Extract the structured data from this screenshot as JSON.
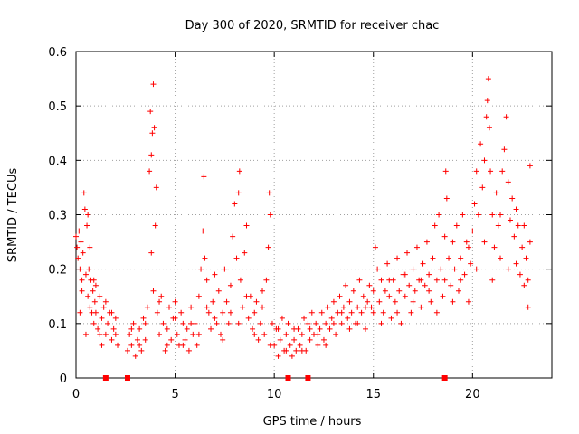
{
  "chart_data": {
    "type": "scatter",
    "title": "Day 300 of 2020, SRMTID for receiver chac",
    "xlabel": "GPS time / hours",
    "ylabel": "SRMTID / TECUs",
    "xlim": [
      0,
      24
    ],
    "ylim": [
      0,
      0.6
    ],
    "xticks": [
      0,
      5,
      10,
      15,
      20
    ],
    "yticks": [
      0,
      0.1,
      0.2,
      0.3,
      0.4,
      0.5,
      0.6
    ],
    "xtick_labels": [
      "0",
      "5",
      "10",
      "15",
      "20"
    ],
    "ytick_labels": [
      "0",
      "0.1",
      "0.2",
      "0.3",
      "0.4",
      "0.5",
      "0.6"
    ],
    "grid": true,
    "marker": "+",
    "color": "#ff0000",
    "series": [
      {
        "name": "SRMTID",
        "points": [
          [
            0.0,
            0.26
          ],
          [
            0.05,
            0.24
          ],
          [
            0.1,
            0.22
          ],
          [
            0.15,
            0.27
          ],
          [
            0.2,
            0.2
          ],
          [
            0.25,
            0.25
          ],
          [
            0.3,
            0.18
          ],
          [
            0.35,
            0.23
          ],
          [
            0.4,
            0.34
          ],
          [
            0.45,
            0.31
          ],
          [
            0.5,
            0.19
          ],
          [
            0.55,
            0.28
          ],
          [
            0.6,
            0.15
          ],
          [
            0.65,
            0.2
          ],
          [
            0.7,
            0.13
          ],
          [
            0.75,
            0.18
          ],
          [
            0.8,
            0.12
          ],
          [
            0.85,
            0.16
          ],
          [
            0.9,
            0.1
          ],
          [
            0.95,
            0.14
          ],
          [
            1.0,
            0.12
          ],
          [
            1.1,
            0.09
          ],
          [
            1.2,
            0.15
          ],
          [
            1.3,
            0.11
          ],
          [
            1.4,
            0.13
          ],
          [
            1.5,
            0.08
          ],
          [
            1.6,
            0.1
          ],
          [
            1.7,
            0.12
          ],
          [
            1.8,
            0.07
          ],
          [
            1.9,
            0.09
          ],
          [
            2.0,
            0.11
          ],
          [
            2.1,
            0.06
          ],
          [
            0.2,
            0.12
          ],
          [
            0.5,
            0.08
          ],
          [
            0.7,
            0.24
          ],
          [
            1.0,
            0.17
          ],
          [
            1.3,
            0.06
          ],
          [
            2.6,
            0.05
          ],
          [
            2.7,
            0.08
          ],
          [
            2.8,
            0.06
          ],
          [
            2.9,
            0.1
          ],
          [
            3.0,
            0.04
          ],
          [
            3.1,
            0.07
          ],
          [
            3.2,
            0.09
          ],
          [
            3.3,
            0.05
          ],
          [
            3.4,
            0.11
          ],
          [
            3.5,
            0.07
          ],
          [
            3.6,
            0.13
          ],
          [
            3.7,
            0.38
          ],
          [
            3.75,
            0.49
          ],
          [
            3.8,
            0.41
          ],
          [
            3.85,
            0.45
          ],
          [
            3.9,
            0.54
          ],
          [
            3.95,
            0.46
          ],
          [
            4.0,
            0.28
          ],
          [
            4.05,
            0.35
          ],
          [
            3.8,
            0.23
          ],
          [
            3.9,
            0.16
          ],
          [
            4.1,
            0.12
          ],
          [
            4.2,
            0.08
          ],
          [
            4.3,
            0.15
          ],
          [
            4.4,
            0.1
          ],
          [
            4.5,
            0.05
          ],
          [
            4.6,
            0.09
          ],
          [
            4.7,
            0.13
          ],
          [
            4.8,
            0.07
          ],
          [
            4.9,
            0.11
          ],
          [
            5.0,
            0.14
          ],
          [
            5.1,
            0.08
          ],
          [
            5.2,
            0.06
          ],
          [
            5.3,
            0.12
          ],
          [
            5.4,
            0.1
          ],
          [
            5.5,
            0.07
          ],
          [
            5.6,
            0.09
          ],
          [
            5.7,
            0.05
          ],
          [
            5.8,
            0.13
          ],
          [
            5.9,
            0.08
          ],
          [
            6.0,
            0.1
          ],
          [
            6.1,
            0.06
          ],
          [
            6.2,
            0.15
          ],
          [
            6.3,
            0.2
          ],
          [
            6.4,
            0.27
          ],
          [
            6.45,
            0.37
          ],
          [
            6.5,
            0.22
          ],
          [
            6.6,
            0.18
          ],
          [
            6.7,
            0.12
          ],
          [
            6.8,
            0.09
          ],
          [
            6.9,
            0.14
          ],
          [
            7.0,
            0.19
          ],
          [
            7.1,
            0.1
          ],
          [
            7.2,
            0.16
          ],
          [
            7.3,
            0.08
          ],
          [
            7.4,
            0.12
          ],
          [
            7.5,
            0.2
          ],
          [
            7.6,
            0.14
          ],
          [
            7.7,
            0.1
          ],
          [
            7.8,
            0.17
          ],
          [
            7.9,
            0.26
          ],
          [
            8.0,
            0.32
          ],
          [
            8.1,
            0.22
          ],
          [
            8.2,
            0.34
          ],
          [
            8.25,
            0.38
          ],
          [
            8.3,
            0.18
          ],
          [
            8.4,
            0.13
          ],
          [
            8.5,
            0.23
          ],
          [
            8.6,
            0.28
          ],
          [
            8.7,
            0.11
          ],
          [
            8.8,
            0.15
          ],
          [
            8.9,
            0.09
          ],
          [
            9.0,
            0.12
          ],
          [
            9.1,
            0.14
          ],
          [
            9.2,
            0.07
          ],
          [
            9.3,
            0.1
          ],
          [
            9.4,
            0.13
          ],
          [
            9.5,
            0.08
          ],
          [
            9.6,
            0.18
          ],
          [
            9.7,
            0.24
          ],
          [
            9.75,
            0.34
          ],
          [
            9.8,
            0.3
          ],
          [
            9.9,
            0.1
          ],
          [
            10.0,
            0.06
          ],
          [
            10.1,
            0.09
          ],
          [
            10.2,
            0.04
          ],
          [
            10.3,
            0.07
          ],
          [
            10.4,
            0.11
          ],
          [
            10.5,
            0.05
          ],
          [
            10.6,
            0.08
          ],
          [
            10.7,
            0.1
          ],
          [
            10.8,
            0.06
          ],
          [
            10.9,
            0.04
          ],
          [
            11.0,
            0.07
          ],
          [
            11.1,
            0.05
          ],
          [
            11.2,
            0.09
          ],
          [
            11.3,
            0.06
          ],
          [
            11.4,
            0.08
          ],
          [
            11.5,
            0.11
          ],
          [
            11.6,
            0.05
          ],
          [
            11.7,
            0.1
          ],
          [
            11.8,
            0.07
          ],
          [
            11.9,
            0.12
          ],
          [
            12.0,
            0.08
          ],
          [
            12.1,
            0.1
          ],
          [
            12.2,
            0.06
          ],
          [
            12.3,
            0.09
          ],
          [
            12.4,
            0.12
          ],
          [
            12.5,
            0.07
          ],
          [
            12.6,
            0.1
          ],
          [
            12.7,
            0.13
          ],
          [
            12.8,
            0.09
          ],
          [
            12.9,
            0.11
          ],
          [
            13.0,
            0.14
          ],
          [
            13.1,
            0.08
          ],
          [
            13.2,
            0.12
          ],
          [
            13.3,
            0.15
          ],
          [
            13.4,
            0.1
          ],
          [
            13.5,
            0.13
          ],
          [
            13.6,
            0.17
          ],
          [
            13.7,
            0.11
          ],
          [
            13.8,
            0.14
          ],
          [
            13.9,
            0.12
          ],
          [
            14.0,
            0.16
          ],
          [
            14.1,
            0.1
          ],
          [
            14.2,
            0.13
          ],
          [
            14.3,
            0.18
          ],
          [
            14.4,
            0.12
          ],
          [
            14.5,
            0.15
          ],
          [
            14.6,
            0.09
          ],
          [
            14.7,
            0.14
          ],
          [
            14.8,
            0.17
          ],
          [
            14.9,
            0.13
          ],
          [
            15.0,
            0.16
          ],
          [
            15.1,
            0.24
          ],
          [
            15.2,
            0.2
          ],
          [
            15.3,
            0.14
          ],
          [
            15.4,
            0.18
          ],
          [
            15.5,
            0.12
          ],
          [
            15.6,
            0.16
          ],
          [
            15.7,
            0.21
          ],
          [
            15.8,
            0.15
          ],
          [
            15.9,
            0.11
          ],
          [
            16.0,
            0.18
          ],
          [
            16.1,
            0.14
          ],
          [
            16.2,
            0.22
          ],
          [
            16.3,
            0.16
          ],
          [
            16.4,
            0.1
          ],
          [
            16.5,
            0.19
          ],
          [
            16.6,
            0.15
          ],
          [
            16.7,
            0.23
          ],
          [
            16.8,
            0.17
          ],
          [
            16.9,
            0.12
          ],
          [
            17.0,
            0.2
          ],
          [
            17.1,
            0.16
          ],
          [
            17.2,
            0.24
          ],
          [
            17.3,
            0.18
          ],
          [
            17.4,
            0.13
          ],
          [
            17.5,
            0.21
          ],
          [
            17.6,
            0.17
          ],
          [
            17.7,
            0.25
          ],
          [
            17.8,
            0.19
          ],
          [
            17.9,
            0.14
          ],
          [
            18.0,
            0.22
          ],
          [
            18.1,
            0.28
          ],
          [
            18.2,
            0.18
          ],
          [
            18.3,
            0.3
          ],
          [
            18.4,
            0.2
          ],
          [
            18.5,
            0.15
          ],
          [
            18.6,
            0.26
          ],
          [
            18.65,
            0.38
          ],
          [
            18.7,
            0.33
          ],
          [
            18.8,
            0.22
          ],
          [
            18.9,
            0.17
          ],
          [
            19.0,
            0.25
          ],
          [
            19.1,
            0.2
          ],
          [
            19.2,
            0.28
          ],
          [
            19.3,
            0.16
          ],
          [
            19.4,
            0.22
          ],
          [
            19.5,
            0.3
          ],
          [
            19.6,
            0.19
          ],
          [
            19.7,
            0.25
          ],
          [
            19.8,
            0.14
          ],
          [
            19.9,
            0.21
          ],
          [
            20.0,
            0.27
          ],
          [
            20.1,
            0.32
          ],
          [
            20.2,
            0.38
          ],
          [
            20.3,
            0.3
          ],
          [
            20.4,
            0.43
          ],
          [
            20.5,
            0.35
          ],
          [
            20.6,
            0.4
          ],
          [
            20.7,
            0.48
          ],
          [
            20.75,
            0.51
          ],
          [
            20.8,
            0.55
          ],
          [
            20.85,
            0.46
          ],
          [
            20.9,
            0.38
          ],
          [
            21.0,
            0.3
          ],
          [
            21.1,
            0.24
          ],
          [
            21.2,
            0.34
          ],
          [
            21.3,
            0.28
          ],
          [
            21.4,
            0.22
          ],
          [
            21.5,
            0.38
          ],
          [
            21.6,
            0.42
          ],
          [
            21.7,
            0.48
          ],
          [
            21.8,
            0.36
          ],
          [
            21.9,
            0.29
          ],
          [
            22.0,
            0.33
          ],
          [
            22.1,
            0.26
          ],
          [
            22.2,
            0.21
          ],
          [
            22.3,
            0.28
          ],
          [
            22.4,
            0.19
          ],
          [
            22.5,
            0.24
          ],
          [
            22.6,
            0.17
          ],
          [
            22.7,
            0.22
          ],
          [
            22.8,
            0.18
          ],
          [
            22.9,
            0.39
          ],
          [
            22.9,
            0.25
          ],
          [
            0.3,
            0.16
          ],
          [
            0.6,
            0.3
          ],
          [
            0.9,
            0.18
          ],
          [
            1.2,
            0.08
          ],
          [
            1.5,
            0.14
          ],
          [
            1.8,
            0.12
          ],
          [
            2.0,
            0.08
          ],
          [
            2.8,
            0.09
          ],
          [
            3.2,
            0.06
          ],
          [
            3.5,
            0.1
          ],
          [
            4.2,
            0.14
          ],
          [
            4.6,
            0.06
          ],
          [
            5.0,
            0.11
          ],
          [
            5.4,
            0.06
          ],
          [
            5.8,
            0.1
          ],
          [
            6.2,
            0.08
          ],
          [
            6.6,
            0.13
          ],
          [
            7.0,
            0.11
          ],
          [
            7.4,
            0.07
          ],
          [
            7.8,
            0.12
          ],
          [
            8.2,
            0.1
          ],
          [
            8.6,
            0.15
          ],
          [
            9.0,
            0.08
          ],
          [
            9.4,
            0.16
          ],
          [
            9.8,
            0.06
          ],
          [
            10.2,
            0.09
          ],
          [
            10.6,
            0.05
          ],
          [
            11.0,
            0.09
          ],
          [
            11.4,
            0.05
          ],
          [
            11.8,
            0.09
          ],
          [
            12.2,
            0.08
          ],
          [
            12.6,
            0.06
          ],
          [
            13.0,
            0.1
          ],
          [
            13.4,
            0.12
          ],
          [
            13.8,
            0.09
          ],
          [
            14.2,
            0.1
          ],
          [
            14.6,
            0.13
          ],
          [
            15.0,
            0.12
          ],
          [
            15.4,
            0.1
          ],
          [
            15.8,
            0.18
          ],
          [
            16.2,
            0.12
          ],
          [
            16.6,
            0.19
          ],
          [
            17.0,
            0.14
          ],
          [
            17.4,
            0.18
          ],
          [
            17.8,
            0.16
          ],
          [
            18.2,
            0.12
          ],
          [
            18.6,
            0.18
          ],
          [
            19.0,
            0.14
          ],
          [
            19.4,
            0.18
          ],
          [
            19.8,
            0.24
          ],
          [
            20.2,
            0.2
          ],
          [
            20.6,
            0.25
          ],
          [
            21.0,
            0.18
          ],
          [
            21.4,
            0.3
          ],
          [
            21.8,
            0.2
          ],
          [
            22.2,
            0.31
          ],
          [
            22.6,
            0.28
          ],
          [
            22.8,
            0.13
          ]
        ]
      }
    ],
    "x_axis_markers": [
      1.5,
      2.6,
      10.7,
      11.7,
      18.6
    ]
  }
}
